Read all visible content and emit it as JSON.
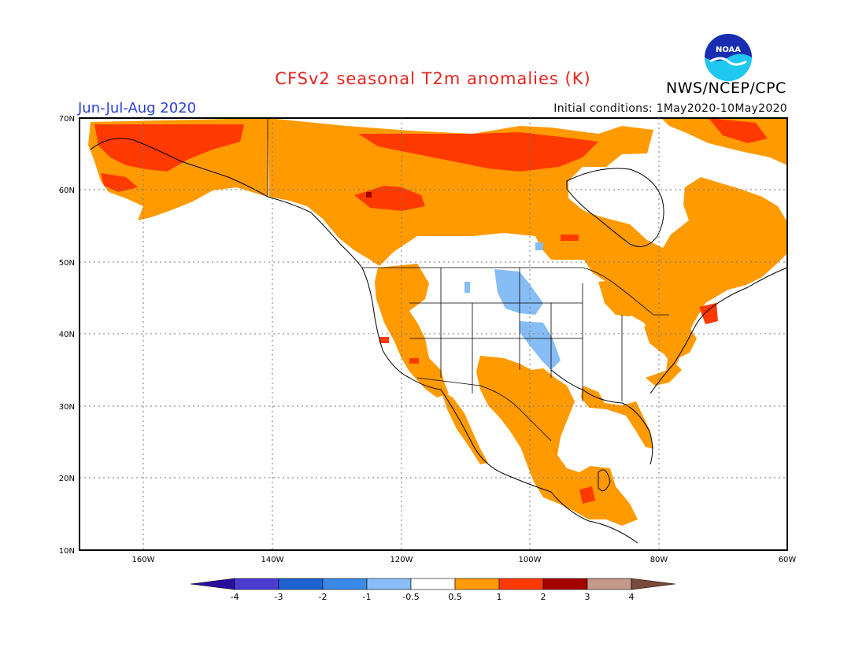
{
  "title": "CFSv2 seasonal T2m anomalies (K)",
  "season": "Jun-Jul-Aug 2020",
  "initial_conditions": "Initial conditions: 1May2020-10May2020",
  "agency": "NWS/NCEP/CPC",
  "logo_text": "NOAA",
  "lat_labels": [
    "70N",
    "60N",
    "50N",
    "40N",
    "30N",
    "20N",
    "10N"
  ],
  "lon_labels": [
    "160W",
    "140W",
    "120W",
    "100W",
    "80W",
    "60W"
  ],
  "colorbar": {
    "labels": [
      "-4",
      "-3",
      "-2",
      "-1",
      "-0.5",
      "0.5",
      "1",
      "2",
      "3",
      "4"
    ],
    "colors": [
      "#2a0e9c",
      "#4b3bd2",
      "#1f63d2",
      "#3c8ae8",
      "#87bdf5",
      "#ffffff",
      "#ff9a00",
      "#ff3a00",
      "#a40000",
      "#c49a8a",
      "#7a4a3c"
    ]
  },
  "colors": {
    "title": "#e8231d",
    "season": "#2a3fd6",
    "warm_05_1": "#ff9a00",
    "warm_1_2": "#ff3a00",
    "cool_05_1": "#87bdf5"
  }
}
